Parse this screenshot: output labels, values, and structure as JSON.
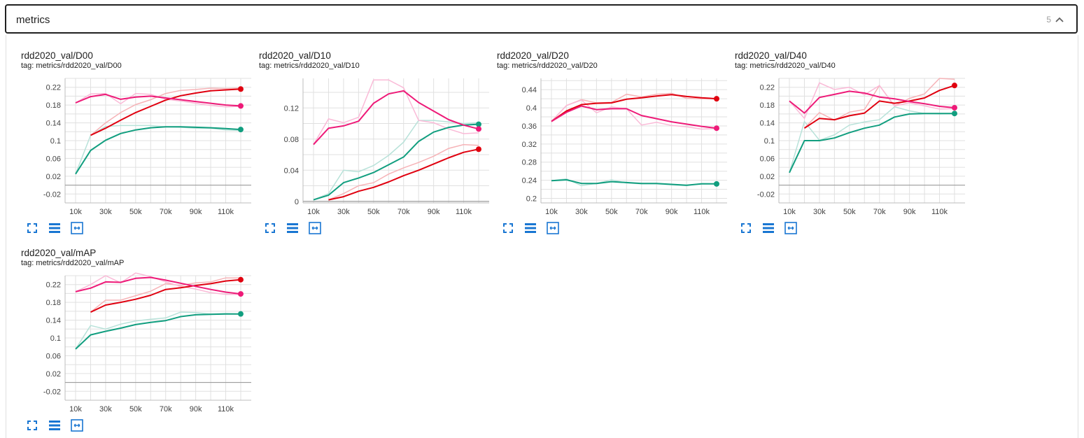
{
  "section": {
    "title": "metrics",
    "count": "5"
  },
  "colors": {
    "red": "#e0000f",
    "pink": "#ee1a78",
    "teal": "#119e7f"
  },
  "toolbar": {
    "fullscreen_icon": "fullscreen-icon",
    "data_table_icon": "data-table-icon",
    "fit_domain_icon": "fit-domain-icon"
  },
  "chart_data": [
    {
      "type": "line",
      "title": "rdd2020_val/D00",
      "tag": "tag: metrics/rdd2020_val/D00",
      "xlim": [
        3000,
        127000
      ],
      "ylim": [
        -0.04,
        0.24
      ],
      "xticks": [
        10000,
        30000,
        50000,
        70000,
        90000,
        110000
      ],
      "xtick_labels": [
        "10k",
        "30k",
        "50k",
        "70k",
        "90k",
        "110k"
      ],
      "yticks": [
        -0.02,
        0.02,
        0.06,
        0.1,
        0.14,
        0.18,
        0.22
      ],
      "ytick_labels": [
        "-0.02",
        "0.02",
        "0.06",
        "0.1",
        "0.14",
        "0.18",
        "0.22"
      ],
      "x": [
        10000,
        20000,
        30000,
        40000,
        50000,
        60000,
        70000,
        80000,
        90000,
        100000,
        110000,
        120000
      ],
      "series": [
        {
          "name": "teal",
          "color": "#119e7f",
          "smoothed": [
            0.025,
            0.078,
            0.101,
            0.116,
            0.124,
            0.129,
            0.131,
            0.131,
            0.13,
            0.129,
            0.127,
            0.125
          ],
          "raw": [
            0.025,
            0.112,
            0.132,
            0.134,
            0.134,
            0.134,
            0.131,
            0.13,
            0.128,
            0.128,
            0.124,
            0.123
          ]
        },
        {
          "name": "red",
          "color": "#e0000f",
          "smoothed": [
            null,
            0.112,
            0.128,
            0.146,
            0.163,
            0.177,
            0.191,
            0.201,
            0.207,
            0.212,
            0.214,
            0.216
          ],
          "raw": [
            null,
            0.112,
            0.14,
            0.163,
            0.181,
            0.192,
            0.206,
            0.213,
            0.215,
            0.218,
            0.217,
            0.218
          ]
        },
        {
          "name": "pink",
          "color": "#ee1a78",
          "smoothed": [
            0.185,
            0.199,
            0.204,
            0.193,
            0.198,
            0.2,
            0.196,
            0.192,
            0.188,
            0.184,
            0.18,
            0.178
          ],
          "raw": [
            0.185,
            0.205,
            0.206,
            0.183,
            0.206,
            0.204,
            0.193,
            0.189,
            0.184,
            0.179,
            0.176,
            0.177
          ]
        }
      ]
    },
    {
      "type": "line",
      "title": "rdd2020_val/D10",
      "tag": "tag: metrics/rdd2020_val/D10",
      "xlim": [
        3000,
        127000
      ],
      "ylim": [
        -0.002,
        0.158
      ],
      "xticks": [
        10000,
        30000,
        50000,
        70000,
        90000,
        110000
      ],
      "xtick_labels": [
        "10k",
        "30k",
        "50k",
        "70k",
        "90k",
        "110k"
      ],
      "yticks": [
        0,
        0.04,
        0.08,
        0.12
      ],
      "ytick_labels": [
        "0",
        "0.04",
        "0.08",
        "0.12"
      ],
      "x": [
        10000,
        20000,
        30000,
        40000,
        50000,
        60000,
        70000,
        80000,
        90000,
        100000,
        110000,
        120000
      ],
      "series": [
        {
          "name": "teal",
          "color": "#119e7f",
          "smoothed": [
            0.002,
            0.008,
            0.024,
            0.03,
            0.037,
            0.047,
            0.057,
            0.077,
            0.089,
            0.095,
            0.098,
            0.099
          ],
          "raw": [
            0.002,
            0.01,
            0.04,
            0.038,
            0.046,
            0.059,
            0.076,
            0.104,
            0.104,
            0.102,
            0.1,
            0.101
          ]
        },
        {
          "name": "red",
          "color": "#e0000f",
          "smoothed": [
            null,
            0.002,
            0.006,
            0.013,
            0.018,
            0.025,
            0.033,
            0.04,
            0.048,
            0.056,
            0.063,
            0.067
          ],
          "raw": [
            null,
            0.002,
            0.01,
            0.02,
            0.024,
            0.035,
            0.043,
            0.05,
            0.058,
            0.068,
            0.073,
            0.072
          ]
        },
        {
          "name": "pink",
          "color": "#ee1a78",
          "smoothed": [
            0.073,
            0.094,
            0.097,
            0.103,
            0.126,
            0.138,
            0.142,
            0.127,
            0.116,
            0.105,
            0.098,
            0.093
          ],
          "raw": [
            0.073,
            0.106,
            0.101,
            0.108,
            0.156,
            0.156,
            0.146,
            0.104,
            0.101,
            0.093,
            0.087,
            0.088
          ]
        }
      ]
    },
    {
      "type": "line",
      "title": "rdd2020_val/D20",
      "tag": "tag: metrics/rdd2020_val/D20",
      "xlim": [
        3000,
        127000
      ],
      "ylim": [
        0.19,
        0.465
      ],
      "xticks": [
        10000,
        30000,
        50000,
        70000,
        90000,
        110000
      ],
      "xtick_labels": [
        "10k",
        "30k",
        "50k",
        "70k",
        "90k",
        "110k"
      ],
      "yticks": [
        0.2,
        0.24,
        0.28,
        0.32,
        0.36,
        0.4,
        0.44
      ],
      "ytick_labels": [
        "0.2",
        "0.24",
        "0.28",
        "0.32",
        "0.36",
        "0.4",
        "0.44"
      ],
      "x": [
        10000,
        20000,
        30000,
        40000,
        50000,
        60000,
        70000,
        80000,
        90000,
        100000,
        110000,
        120000
      ],
      "series": [
        {
          "name": "teal",
          "color": "#119e7f",
          "smoothed": [
            0.239,
            0.241,
            0.233,
            0.233,
            0.237,
            0.235,
            0.233,
            0.233,
            0.231,
            0.229,
            0.232,
            0.232
          ],
          "raw": [
            0.239,
            0.243,
            0.228,
            0.233,
            0.241,
            0.234,
            0.232,
            0.232,
            0.23,
            0.228,
            0.233,
            0.232
          ]
        },
        {
          "name": "red",
          "color": "#e0000f",
          "smoothed": [
            0.37,
            0.393,
            0.407,
            0.41,
            0.411,
            0.419,
            0.422,
            0.426,
            0.429,
            0.425,
            0.422,
            0.42
          ],
          "raw": [
            0.37,
            0.405,
            0.418,
            0.411,
            0.412,
            0.43,
            0.424,
            0.43,
            0.432,
            0.421,
            0.42,
            0.42
          ]
        },
        {
          "name": "pink",
          "color": "#ee1a78",
          "smoothed": [
            0.37,
            0.39,
            0.404,
            0.396,
            0.398,
            0.398,
            0.383,
            0.376,
            0.369,
            0.364,
            0.359,
            0.355
          ],
          "raw": [
            0.37,
            0.405,
            0.417,
            0.389,
            0.402,
            0.398,
            0.362,
            0.368,
            0.361,
            0.358,
            0.353,
            0.354
          ]
        }
      ]
    },
    {
      "type": "line",
      "title": "rdd2020_val/D40",
      "tag": "tag: metrics/rdd2020_val/D40",
      "xlim": [
        3000,
        127000
      ],
      "ylim": [
        -0.04,
        0.24
      ],
      "xticks": [
        10000,
        30000,
        50000,
        70000,
        90000,
        110000
      ],
      "xtick_labels": [
        "10k",
        "30k",
        "50k",
        "70k",
        "90k",
        "110k"
      ],
      "yticks": [
        -0.02,
        0.02,
        0.06,
        0.1,
        0.14,
        0.18,
        0.22
      ],
      "ytick_labels": [
        "-0.02",
        "0.02",
        "0.06",
        "0.1",
        "0.14",
        "0.18",
        "0.22"
      ],
      "x": [
        10000,
        20000,
        30000,
        40000,
        50000,
        60000,
        70000,
        80000,
        90000,
        100000,
        110000,
        120000
      ],
      "series": [
        {
          "name": "teal",
          "color": "#119e7f",
          "smoothed": [
            0.028,
            0.1,
            0.1,
            0.106,
            0.118,
            0.128,
            0.135,
            0.153,
            0.16,
            0.161,
            0.161,
            0.161
          ],
          "raw": [
            0.028,
            0.143,
            0.101,
            0.113,
            0.135,
            0.142,
            0.147,
            0.176,
            0.167,
            0.161,
            0.16,
            0.161
          ]
        },
        {
          "name": "red",
          "color": "#e0000f",
          "smoothed": [
            null,
            0.128,
            0.15,
            0.147,
            0.156,
            0.162,
            0.189,
            0.184,
            0.189,
            0.196,
            0.213,
            0.224
          ],
          "raw": [
            null,
            0.128,
            0.163,
            0.146,
            0.164,
            0.17,
            0.224,
            0.178,
            0.195,
            0.205,
            0.24,
            0.238
          ]
        },
        {
          "name": "pink",
          "color": "#ee1a78",
          "smoothed": [
            0.189,
            0.162,
            0.197,
            0.204,
            0.211,
            0.207,
            0.198,
            0.194,
            0.188,
            0.183,
            0.177,
            0.174
          ],
          "raw": [
            0.189,
            0.15,
            0.23,
            0.215,
            0.22,
            0.203,
            0.224,
            0.178,
            0.185,
            0.178,
            0.171,
            0.172
          ]
        }
      ]
    },
    {
      "type": "line",
      "title": "rdd2020_val/mAP",
      "tag": "tag: metrics/rdd2020_val/mAP",
      "xlim": [
        3000,
        127000
      ],
      "ylim": [
        -0.04,
        0.24
      ],
      "xticks": [
        10000,
        30000,
        50000,
        70000,
        90000,
        110000
      ],
      "xtick_labels": [
        "10k",
        "30k",
        "50k",
        "70k",
        "90k",
        "110k"
      ],
      "yticks": [
        -0.02,
        0.02,
        0.06,
        0.1,
        0.14,
        0.18,
        0.22
      ],
      "ytick_labels": [
        "-0.02",
        "0.02",
        "0.06",
        "0.1",
        "0.14",
        "0.18",
        "0.22"
      ],
      "x": [
        10000,
        20000,
        30000,
        40000,
        50000,
        60000,
        70000,
        80000,
        90000,
        100000,
        110000,
        120000
      ],
      "series": [
        {
          "name": "teal",
          "color": "#119e7f",
          "smoothed": [
            0.075,
            0.107,
            0.115,
            0.122,
            0.13,
            0.135,
            0.139,
            0.148,
            0.152,
            0.153,
            0.154,
            0.154
          ],
          "raw": [
            0.075,
            0.128,
            0.12,
            0.131,
            0.138,
            0.142,
            0.145,
            0.158,
            0.157,
            0.154,
            0.155,
            0.154
          ]
        },
        {
          "name": "red",
          "color": "#e0000f",
          "smoothed": [
            null,
            0.158,
            0.174,
            0.18,
            0.187,
            0.196,
            0.209,
            0.213,
            0.218,
            0.222,
            0.228,
            0.231
          ],
          "raw": [
            null,
            0.158,
            0.185,
            0.185,
            0.195,
            0.205,
            0.222,
            0.218,
            0.224,
            0.226,
            0.235,
            0.235
          ]
        },
        {
          "name": "pink",
          "color": "#ee1a78",
          "smoothed": [
            0.204,
            0.212,
            0.226,
            0.225,
            0.234,
            0.236,
            0.23,
            0.223,
            0.216,
            0.209,
            0.203,
            0.199
          ],
          "raw": [
            0.204,
            0.22,
            0.24,
            0.224,
            0.246,
            0.238,
            0.226,
            0.216,
            0.21,
            0.202,
            0.198,
            0.198
          ]
        }
      ]
    }
  ]
}
